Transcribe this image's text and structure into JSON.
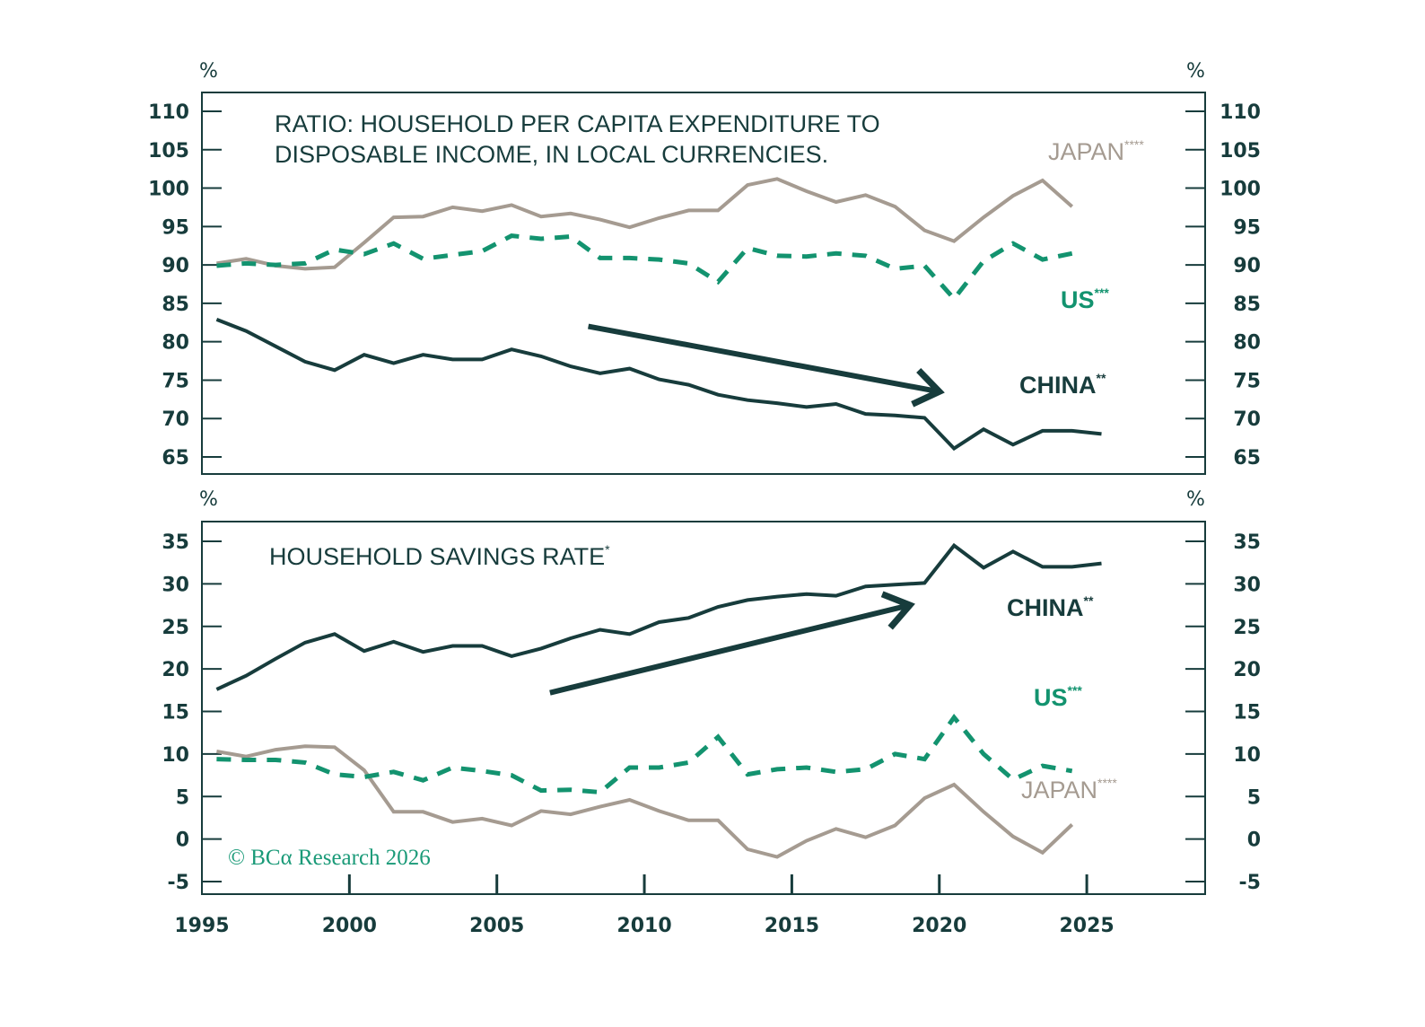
{
  "colors": {
    "frame": "#173c3c",
    "china": "#173c3c",
    "us": "#13936f",
    "japan": "#a59b91",
    "copyright": "#1a9a78"
  },
  "copyright": "© BCα Research 2026",
  "chart_data": [
    {
      "type": "line",
      "title": "RATIO: HOUSEHOLD PER CAPITA EXPENDITURE TO DISPOSABLE INCOME, IN LOCAL CURRENCIES.",
      "title_lines": [
        "RATIO: HOUSEHOLD PER CAPITA EXPENDITURE TO",
        "DISPOSABLE INCOME, IN LOCAL CURRENCIES."
      ],
      "xlabel": "",
      "ylabel_left": "%",
      "ylabel_right": "%",
      "ylim": [
        62,
        112
      ],
      "yticks": [
        65,
        70,
        75,
        80,
        85,
        90,
        95,
        100,
        105,
        110
      ],
      "xlim": [
        1995,
        2029
      ],
      "grid": false,
      "series": [
        {
          "name": "CHINA",
          "label": "CHINA",
          "footnote": "**",
          "style": "solid",
          "x": [
            1995.5,
            1996.5,
            1997.5,
            1998.5,
            1999.5,
            2000.5,
            2001.5,
            2002.5,
            2003.5,
            2004.5,
            2005.5,
            2006.5,
            2007.5,
            2008.5,
            2009.5,
            2010.5,
            2011.5,
            2012.5,
            2013.5,
            2014.5,
            2015.5,
            2016.5,
            2017.5,
            2018.5,
            2019.5,
            2020.5,
            2021.5,
            2022.5,
            2023.5,
            2024.5,
            2025.5
          ],
          "values": [
            82.9,
            81.4,
            79.4,
            77.4,
            76.3,
            78.3,
            77.2,
            78.3,
            77.7,
            77.7,
            79.0,
            78.1,
            76.8,
            75.9,
            76.5,
            75.1,
            74.4,
            73.1,
            72.4,
            72.0,
            71.5,
            71.9,
            70.6,
            70.4,
            70.1,
            66.1,
            68.6,
            66.6,
            68.4,
            68.4,
            68.0
          ]
        },
        {
          "name": "US",
          "label": "US",
          "footnote": "***",
          "style": "dashed",
          "x": [
            1995.5,
            1996.5,
            1997.5,
            1998.5,
            1999.5,
            2000.5,
            2001.5,
            2002.5,
            2003.5,
            2004.5,
            2005.5,
            2006.5,
            2007.5,
            2008.5,
            2009.5,
            2010.5,
            2011.5,
            2012.5,
            2013.5,
            2014.5,
            2015.5,
            2016.5,
            2017.5,
            2018.5,
            2019.5,
            2020.5,
            2021.5,
            2022.5,
            2023.5,
            2024.5
          ],
          "values": [
            89.9,
            90.2,
            90.0,
            90.2,
            92.0,
            91.4,
            92.8,
            90.8,
            91.3,
            91.8,
            93.8,
            93.4,
            93.7,
            90.9,
            90.9,
            90.7,
            90.2,
            87.8,
            92.2,
            91.2,
            91.1,
            91.5,
            91.2,
            89.5,
            89.9,
            85.6,
            90.5,
            92.8,
            90.7,
            91.5
          ]
        },
        {
          "name": "JAPAN",
          "label": "JAPAN",
          "footnote": "****",
          "style": "solid",
          "x": [
            1995.5,
            1996.5,
            1997.5,
            1998.5,
            1999.5,
            2000.5,
            2001.5,
            2002.5,
            2003.5,
            2004.5,
            2005.5,
            2006.5,
            2007.5,
            2008.5,
            2009.5,
            2010.5,
            2011.5,
            2012.5,
            2013.5,
            2014.5,
            2015.5,
            2016.5,
            2017.5,
            2018.5,
            2019.5,
            2020.5,
            2021.5,
            2022.5,
            2023.5,
            2024.5
          ],
          "values": [
            90.2,
            90.8,
            89.9,
            89.5,
            89.7,
            92.9,
            96.2,
            96.3,
            97.5,
            97.0,
            97.8,
            96.3,
            96.7,
            95.9,
            94.9,
            96.1,
            97.1,
            97.1,
            100.4,
            101.2,
            99.6,
            98.2,
            99.1,
            97.6,
            94.5,
            93.1,
            96.2,
            99.0,
            101.0,
            97.6
          ]
        }
      ],
      "annotations": [
        {
          "type": "arrow",
          "direction": "down",
          "from": [
            2008.1,
            82.0
          ],
          "to": [
            2020,
            73.5
          ]
        }
      ]
    },
    {
      "type": "line",
      "title": "HOUSEHOLD SAVINGS RATE",
      "title_footnote": "*",
      "xlabel": "",
      "ylabel_left": "%",
      "ylabel_right": "%",
      "ylim": [
        -6.5,
        37
      ],
      "yticks": [
        -5,
        0,
        5,
        10,
        15,
        20,
        25,
        30,
        35
      ],
      "xticks": [
        1995,
        2000,
        2005,
        2010,
        2015,
        2020,
        2025
      ],
      "xticklabels": [
        "1995",
        "2000",
        "2005",
        "2010",
        "2015",
        "2020",
        "2025"
      ],
      "xlim": [
        1995,
        2029
      ],
      "grid": false,
      "series": [
        {
          "name": "CHINA",
          "label": "CHINA",
          "footnote": "**",
          "style": "solid",
          "x": [
            1995.5,
            1996.5,
            1997.5,
            1998.5,
            1999.5,
            2000.5,
            2001.5,
            2002.5,
            2003.5,
            2004.5,
            2005.5,
            2006.5,
            2007.5,
            2008.5,
            2009.5,
            2010.5,
            2011.5,
            2012.5,
            2013.5,
            2014.5,
            2015.5,
            2016.5,
            2017.5,
            2018.5,
            2019.5,
            2020.5,
            2021.5,
            2022.5,
            2023.5,
            2024.5,
            2025.5
          ],
          "values": [
            17.6,
            19.2,
            21.2,
            23.1,
            24.1,
            22.1,
            23.2,
            22.0,
            22.7,
            22.7,
            21.5,
            22.4,
            23.6,
            24.6,
            24.1,
            25.5,
            26.0,
            27.3,
            28.1,
            28.5,
            28.8,
            28.6,
            29.7,
            29.9,
            30.1,
            34.5,
            31.9,
            33.8,
            32.0,
            32.0,
            32.4
          ]
        },
        {
          "name": "US",
          "label": "US",
          "footnote": "***",
          "style": "dashed",
          "x": [
            1995.5,
            1996.5,
            1997.5,
            1998.5,
            1999.5,
            2000.5,
            2001.5,
            2002.5,
            2003.5,
            2004.5,
            2005.5,
            2006.5,
            2007.5,
            2008.5,
            2009.5,
            2010.5,
            2011.5,
            2012.5,
            2013.5,
            2014.5,
            2015.5,
            2016.5,
            2017.5,
            2018.5,
            2019.5,
            2020.5,
            2021.5,
            2022.5,
            2023.5,
            2024.5
          ],
          "values": [
            9.4,
            9.3,
            9.3,
            9.0,
            7.6,
            7.3,
            7.9,
            6.9,
            8.4,
            8.0,
            7.5,
            5.7,
            5.8,
            5.5,
            8.4,
            8.4,
            9.0,
            12.0,
            7.6,
            8.2,
            8.4,
            7.9,
            8.2,
            10.0,
            9.4,
            14.3,
            10.0,
            7.0,
            8.6,
            8.0
          ]
        },
        {
          "name": "JAPAN",
          "label": "JAPAN",
          "footnote": "****",
          "style": "solid",
          "x": [
            1995.5,
            1996.5,
            1997.5,
            1998.5,
            1999.5,
            2000.5,
            2001.5,
            2002.5,
            2003.5,
            2004.5,
            2005.5,
            2006.5,
            2007.5,
            2008.5,
            2009.5,
            2010.5,
            2011.5,
            2012.5,
            2013.5,
            2014.5,
            2015.5,
            2016.5,
            2017.5,
            2018.5,
            2019.5,
            2020.5,
            2021.5,
            2022.5,
            2023.5,
            2024.5
          ],
          "values": [
            10.3,
            9.7,
            10.5,
            10.9,
            10.8,
            8.1,
            3.2,
            3.2,
            2.0,
            2.4,
            1.6,
            3.3,
            2.9,
            3.8,
            4.6,
            3.3,
            2.2,
            2.2,
            -1.2,
            -2.1,
            -0.2,
            1.2,
            0.2,
            1.6,
            4.8,
            6.4,
            3.2,
            0.3,
            -1.6,
            1.7
          ]
        }
      ],
      "annotations": [
        {
          "type": "arrow",
          "direction": "up",
          "from": [
            2006.8,
            17.2
          ],
          "to": [
            2019,
            27.5
          ]
        }
      ]
    }
  ]
}
